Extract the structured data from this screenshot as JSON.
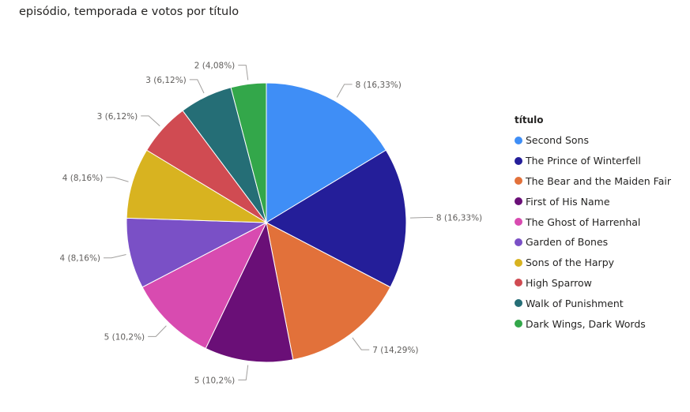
{
  "chart_title": "episódio, temporada e votos por título",
  "chart_data": {
    "type": "pie",
    "title": "episódio, temporada e votos por título",
    "legend_title": "título",
    "legend_position": "right",
    "slices": [
      {
        "name": "Second Sons",
        "value": 8,
        "label": "8 (16,33%)",
        "color": "#3f8ef6"
      },
      {
        "name": "The Prince of Winterfell",
        "value": 8,
        "label": "8 (16,33%)",
        "color": "#241e99"
      },
      {
        "name": "The Bear and the Maiden Fair",
        "value": 7,
        "label": "7 (14,29%)",
        "color": "#e2713a"
      },
      {
        "name": "First of His Name",
        "value": 5,
        "label": "5 (10,2%)",
        "color": "#6a0f77"
      },
      {
        "name": "The Ghost of Harrenhal",
        "value": 5,
        "label": "5 (10,2%)",
        "color": "#d84bb0"
      },
      {
        "name": "Garden of Bones",
        "value": 4,
        "label": "4 (8,16%)",
        "color": "#7a50c6"
      },
      {
        "name": "Sons of the Harpy",
        "value": 4,
        "label": "4 (8,16%)",
        "color": "#d8b320"
      },
      {
        "name": "High Sparrow",
        "value": 3,
        "label": "3 (6,12%)",
        "color": "#d04b52"
      },
      {
        "name": "Walk of Punishment",
        "value": 3,
        "label": "3 (6,12%)",
        "color": "#256e76"
      },
      {
        "name": "Dark Wings, Dark Words",
        "value": 2,
        "label": "2 (4,08%)",
        "color": "#33a74a"
      }
    ]
  }
}
